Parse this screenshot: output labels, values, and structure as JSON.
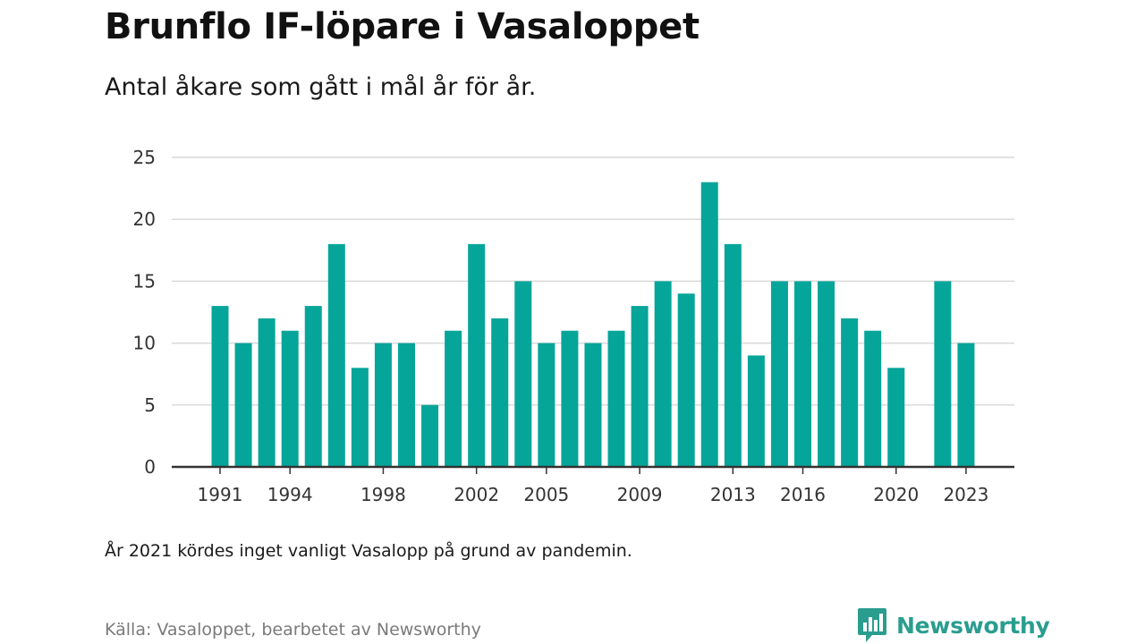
{
  "header": {
    "title": "Brunflo IF-löpare i Vasaloppet",
    "subtitle": "Antal åkare som gått i mål år för år."
  },
  "footer": {
    "note": "År 2021 kördes inget vanligt Vasalopp på grund av pandemin.",
    "source": "Källa: Vasaloppet, bearbetet av Newsworthy",
    "brand": "Newsworthy"
  },
  "colors": {
    "bar": "#06a59a",
    "brand": "#2a9d8f",
    "grid": "#d9d9d9",
    "axis": "#333333"
  },
  "icons": {
    "logo": "newsworthy-chart-bubble-icon"
  },
  "chart_data": {
    "type": "bar",
    "title": "Brunflo IF-löpare i Vasaloppet",
    "subtitle": "Antal åkare som gått i mål år för år.",
    "xlabel": "",
    "ylabel": "",
    "ylim": [
      0,
      25
    ],
    "yticks": [
      0,
      5,
      10,
      15,
      20,
      25
    ],
    "xticks": [
      1991,
      1994,
      1998,
      2002,
      2005,
      2009,
      2013,
      2016,
      2020,
      2023
    ],
    "grid": true,
    "legend": "none",
    "x": [
      1991,
      1992,
      1993,
      1994,
      1995,
      1996,
      1997,
      1998,
      1999,
      2000,
      2001,
      2002,
      2003,
      2004,
      2005,
      2006,
      2007,
      2008,
      2009,
      2010,
      2011,
      2012,
      2013,
      2014,
      2015,
      2016,
      2017,
      2018,
      2019,
      2020,
      2022,
      2023
    ],
    "values": [
      13,
      10,
      12,
      11,
      13,
      18,
      8,
      10,
      10,
      5,
      11,
      18,
      12,
      15,
      10,
      11,
      10,
      11,
      13,
      15,
      14,
      23,
      18,
      9,
      15,
      15,
      15,
      12,
      11,
      8,
      15,
      10
    ]
  }
}
